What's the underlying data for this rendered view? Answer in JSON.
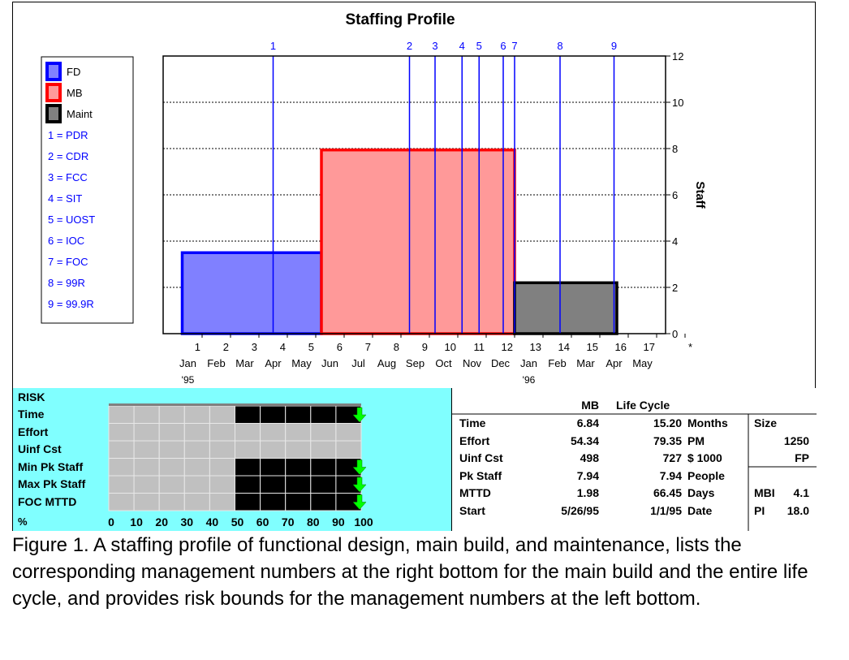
{
  "chart_data": {
    "type": "bar",
    "title": "Staffing Profile",
    "ylabel": "Staff",
    "ylim": [
      0,
      12
    ],
    "y_ticks": [
      0,
      2,
      4,
      6,
      8,
      10,
      12
    ],
    "xlim": [
      0,
      17.5
    ],
    "x_ticks": [
      "1",
      "2",
      "3",
      "4",
      "5",
      "6",
      "7",
      "8",
      "9",
      "10",
      "11",
      "12",
      "13",
      "14",
      "15",
      "16",
      "17",
      "*"
    ],
    "month_labels": [
      "Jan",
      "Feb",
      "Mar",
      "Apr",
      "May",
      "Jun",
      "Jul",
      "Aug",
      "Sep",
      "Oct",
      "Nov",
      "Dec",
      "Jan",
      "Feb",
      "Mar",
      "Apr",
      "May"
    ],
    "year_labels": [
      {
        "text": "'95",
        "month_index": 0
      },
      {
        "text": "'96",
        "month_index": 12
      }
    ],
    "grid": true,
    "phases": [
      {
        "name": "FD",
        "start": 0.3,
        "end": 5.2,
        "staff": 3.5,
        "fill": "#8080ff",
        "stroke": "#0000ff"
      },
      {
        "name": "MB",
        "start": 5.2,
        "end": 12.0,
        "staff": 7.94,
        "fill": "#ff9999",
        "stroke": "#ff0000"
      },
      {
        "name": "Maint",
        "start": 12.0,
        "end": 15.6,
        "staff": 2.2,
        "fill": "#808080",
        "stroke": "#000000"
      }
    ],
    "milestones": [
      {
        "number": "1",
        "x": 3.5,
        "name": "PDR"
      },
      {
        "number": "2",
        "x": 8.3,
        "name": "CDR"
      },
      {
        "number": "3",
        "x": 9.2,
        "name": "FCC"
      },
      {
        "number": "4",
        "x": 10.15,
        "name": "SIT"
      },
      {
        "number": "5",
        "x": 10.75,
        "name": "UOST"
      },
      {
        "number": "6",
        "x": 11.6,
        "name": "IOC"
      },
      {
        "number": "7",
        "x": 12.0,
        "name": "FOC"
      },
      {
        "number": "8",
        "x": 13.6,
        "name": "99R"
      },
      {
        "number": "9",
        "x": 15.5,
        "name": "99.9R"
      }
    ],
    "legend": [
      {
        "label": "FD",
        "fill": "#8080ff",
        "stroke": "#0000ff"
      },
      {
        "label": "MB",
        "fill": "#ff9999",
        "stroke": "#ff0000"
      },
      {
        "label": "Maint",
        "fill": "#808080",
        "stroke": "#000000"
      },
      {
        "label": "1 = PDR"
      },
      {
        "label": "2 = CDR"
      },
      {
        "label": "3 = FCC"
      },
      {
        "label": "4 = SIT"
      },
      {
        "label": "5 = UOST"
      },
      {
        "label": "6 = IOC"
      },
      {
        "label": "7 = FOC"
      },
      {
        "label": "8 = 99R"
      },
      {
        "label": "9 = 99.9R"
      }
    ],
    "legend_placement": "left"
  },
  "risk": {
    "title": "RISK",
    "rows": [
      {
        "label": "Time",
        "bound_percent": 50
      },
      {
        "label": "Effort",
        "bound_percent": null
      },
      {
        "label": "Uinf Cst",
        "bound_percent": null
      },
      {
        "label": "Min Pk Staff",
        "bound_percent": 50
      },
      {
        "label": "Max Pk Staff",
        "bound_percent": 50
      },
      {
        "label": "FOC MTTD",
        "bound_percent": 50
      }
    ],
    "axis_label": "%",
    "scale": [
      "0",
      "10",
      "20",
      "30",
      "40",
      "50",
      "60",
      "70",
      "80",
      "90",
      "100"
    ],
    "colors": {
      "empty": "#c0c0c0",
      "filled": "#000000",
      "arrow": "#00ff00"
    }
  },
  "stats": {
    "col_mb": "MB",
    "col_lifecycle": "Life Cycle",
    "rows": [
      {
        "label": "Time",
        "mb": "6.84",
        "lc": "15.20",
        "unit": "Months"
      },
      {
        "label": "Effort",
        "mb": "54.34",
        "lc": "79.35",
        "unit": "PM"
      },
      {
        "label": "Uinf Cst",
        "mb": "498",
        "lc": "727",
        "unit": "$ 1000"
      },
      {
        "label": "Pk Staff",
        "mb": "7.94",
        "lc": "7.94",
        "unit": "People"
      },
      {
        "label": "MTTD",
        "mb": "1.98",
        "lc": "66.45",
        "unit": "Days"
      },
      {
        "label": "Start",
        "mb": "5/26/95",
        "lc": "1/1/95",
        "unit": "Date"
      }
    ],
    "size_label": "Size",
    "size_value": "1250",
    "size_unit": "FP",
    "mbi_label": "MBI",
    "mbi_value": "4.1",
    "pi_label": "PI",
    "pi_value": "18.0"
  },
  "caption": "Figure 1. A staffing profile of functional design, main build, and maintenance, lists the corresponding management numbers at the right bottom for the main build and the entire life cycle, and provides risk bounds for the management numbers at the left bottom."
}
